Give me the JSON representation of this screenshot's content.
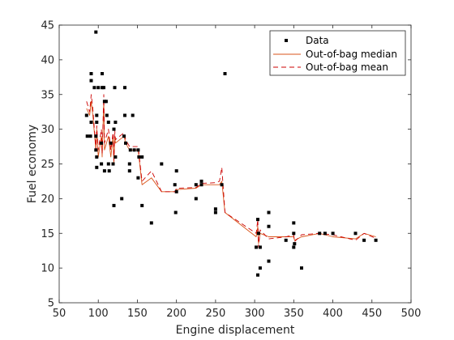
{
  "chart_data": {
    "type": "scatter",
    "title": "",
    "xlabel": "Engine displacement",
    "ylabel": "Fuel economy",
    "xlim": [
      50,
      500
    ],
    "ylim": [
      5,
      45
    ],
    "xticks": [
      50,
      100,
      150,
      200,
      250,
      300,
      350,
      400,
      450,
      500
    ],
    "yticks": [
      5,
      10,
      15,
      20,
      25,
      30,
      35,
      40,
      45
    ],
    "grid": false,
    "legend_position": "top-right",
    "colors": {
      "data": "#000000",
      "median": "#d95319",
      "mean": "#cc0000",
      "axes": "#262626"
    },
    "scatter": {
      "name": "Data",
      "points": [
        [
          85,
          32
        ],
        [
          86,
          29
        ],
        [
          90,
          29
        ],
        [
          91,
          31
        ],
        [
          91,
          38
        ],
        [
          91,
          37
        ],
        [
          95,
          36
        ],
        [
          97,
          44
        ],
        [
          97,
          29
        ],
        [
          97,
          27
        ],
        [
          98,
          26
        ],
        [
          98,
          24.5
        ],
        [
          98,
          31
        ],
        [
          98,
          32
        ],
        [
          100,
          36
        ],
        [
          104,
          28
        ],
        [
          104,
          25
        ],
        [
          105,
          36
        ],
        [
          105,
          38
        ],
        [
          107,
          36
        ],
        [
          108,
          34
        ],
        [
          108,
          24
        ],
        [
          110,
          34
        ],
        [
          111,
          32
        ],
        [
          113,
          31
        ],
        [
          113,
          25
        ],
        [
          114,
          24
        ],
        [
          116,
          28
        ],
        [
          119,
          25
        ],
        [
          120,
          19
        ],
        [
          120,
          30
        ],
        [
          121,
          36
        ],
        [
          122,
          31
        ],
        [
          122,
          26
        ],
        [
          130,
          20
        ],
        [
          133,
          29
        ],
        [
          134,
          32
        ],
        [
          134,
          36
        ],
        [
          135,
          28
        ],
        [
          140,
          25
        ],
        [
          140,
          24
        ],
        [
          141,
          27
        ],
        [
          144,
          32
        ],
        [
          146,
          27
        ],
        [
          151,
          23
        ],
        [
          151,
          27
        ],
        [
          152,
          26
        ],
        [
          156,
          19
        ],
        [
          156,
          26
        ],
        [
          168,
          16.5
        ],
        [
          181,
          25
        ],
        [
          198,
          22
        ],
        [
          199,
          18
        ],
        [
          200,
          21
        ],
        [
          200,
          24
        ],
        [
          225,
          22
        ],
        [
          225,
          20
        ],
        [
          232,
          22.5
        ],
        [
          232,
          22
        ],
        [
          250,
          18
        ],
        [
          250,
          18.5
        ],
        [
          258,
          22
        ],
        [
          262,
          38
        ],
        [
          302,
          13
        ],
        [
          304,
          9
        ],
        [
          304,
          17
        ],
        [
          305,
          15
        ],
        [
          307,
          13
        ],
        [
          307,
          10
        ],
        [
          318,
          11
        ],
        [
          318,
          16
        ],
        [
          318,
          18
        ],
        [
          340,
          14
        ],
        [
          350,
          13
        ],
        [
          350,
          16.5
        ],
        [
          350,
          15
        ],
        [
          351,
          13.5
        ],
        [
          360,
          10
        ],
        [
          383,
          15
        ],
        [
          390,
          15
        ],
        [
          400,
          15
        ],
        [
          429,
          15
        ],
        [
          440,
          14
        ],
        [
          455,
          14
        ]
      ]
    },
    "series": [
      {
        "name": "Out-of-bag median",
        "style": "solid",
        "x": [
          85,
          89,
          91,
          93,
          97,
          98,
          100,
          104,
          105,
          107,
          108,
          113,
          116,
          119,
          120,
          121,
          122,
          133,
          135,
          140,
          151,
          156,
          168,
          181,
          198,
          200,
          225,
          232,
          250,
          255,
          258,
          262,
          302,
          304,
          305,
          307,
          318,
          340,
          350,
          351,
          360,
          383,
          400,
          429,
          440,
          455
        ],
        "y": [
          33,
          32,
          34,
          32,
          27,
          30,
          26,
          29,
          26,
          34,
          27,
          29,
          26,
          29,
          25,
          29,
          28,
          29,
          28,
          27,
          27,
          22,
          23,
          21,
          21,
          21.3,
          21.5,
          22,
          22,
          22,
          22.5,
          18,
          14.5,
          16,
          13.5,
          15,
          14.5,
          14.5,
          14.5,
          14,
          14.5,
          15,
          14.5,
          14.2,
          15,
          14.5
        ]
      },
      {
        "name": "Out-of-bag mean",
        "style": "dashed",
        "x": [
          85,
          89,
          91,
          93,
          97,
          98,
          100,
          104,
          105,
          107,
          108,
          113,
          116,
          119,
          120,
          121,
          122,
          133,
          135,
          140,
          151,
          156,
          168,
          181,
          198,
          200,
          225,
          232,
          250,
          255,
          258,
          262,
          302,
          304,
          305,
          307,
          318,
          340,
          350,
          351,
          360,
          383,
          400,
          429,
          440,
          455
        ],
        "y": [
          34,
          32.5,
          35,
          33,
          27,
          30.5,
          27,
          30,
          26.5,
          35,
          28,
          30,
          27,
          29.5,
          25.5,
          30,
          28.5,
          29.5,
          28.5,
          27.5,
          27.5,
          22.5,
          24,
          21,
          21,
          21.5,
          21.6,
          22.2,
          22.3,
          22.5,
          24.5,
          18,
          15,
          17,
          13,
          15.5,
          14.2,
          14.5,
          14.8,
          13.8,
          14.8,
          15,
          14.8,
          14,
          15,
          14.3
        ]
      }
    ]
  }
}
